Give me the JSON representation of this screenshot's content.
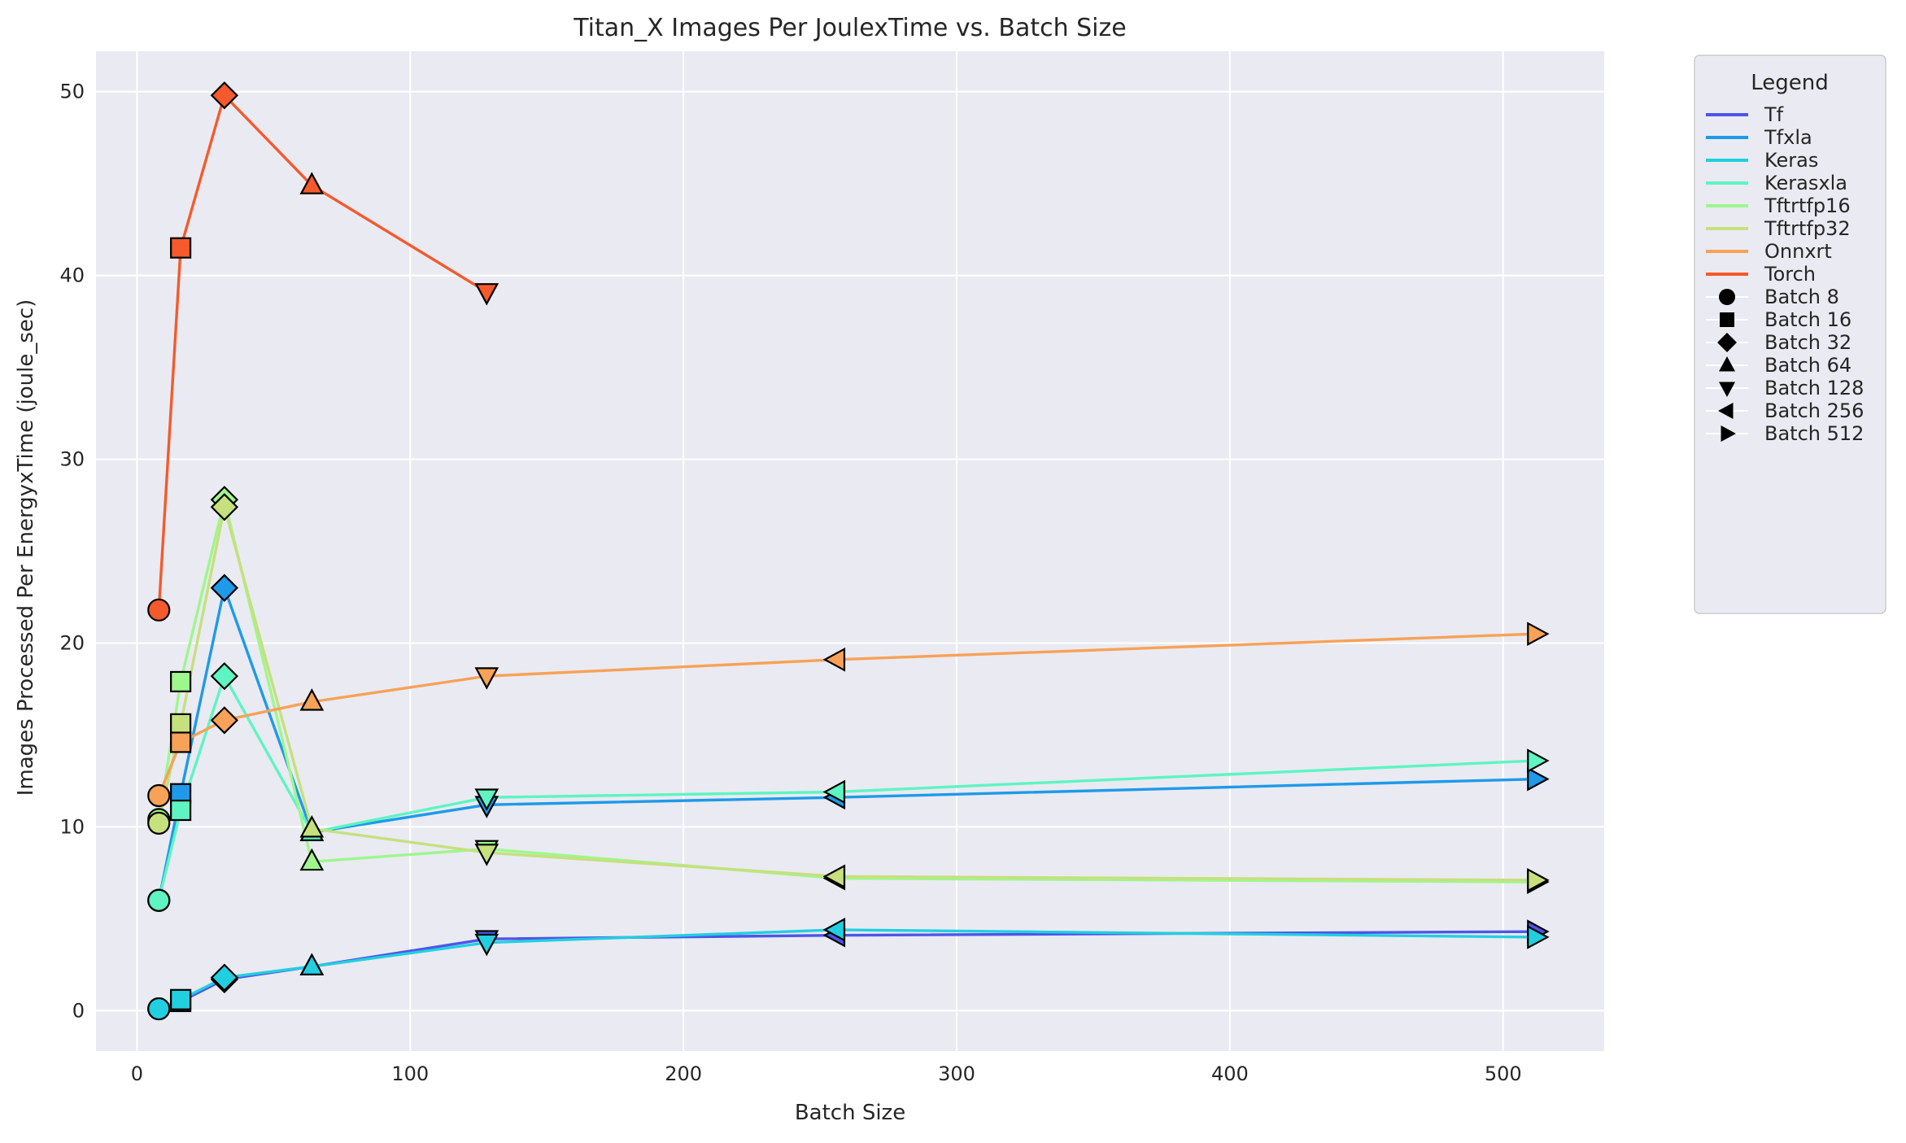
{
  "chart_data": {
    "type": "line",
    "title": "Titan_X Images Per JoulexTime vs. Batch Size",
    "xlabel": "Batch Size",
    "ylabel": "Images Processed Per EnergyxTime (joule_sec)",
    "xlim": [
      -15,
      537
    ],
    "ylim": [
      -2.2,
      52.2
    ],
    "xticks": [
      0,
      100,
      200,
      300,
      400,
      500
    ],
    "yticks": [
      0,
      10,
      20,
      30,
      40,
      50
    ],
    "grid": true,
    "legend_position": "outside-right",
    "legend_title": "Legend",
    "x": [
      8,
      16,
      32,
      64,
      128,
      256,
      512
    ],
    "series": [
      {
        "name": "Tf",
        "color": "#4d55e8",
        "values": [
          0.1,
          0.5,
          1.7,
          2.4,
          3.9,
          4.1,
          4.3
        ]
      },
      {
        "name": "Tfxla",
        "color": "#1e9ae8",
        "values": [
          6.0,
          11.8,
          23.0,
          9.7,
          11.2,
          11.6,
          12.6
        ]
      },
      {
        "name": "Keras",
        "color": "#22cfe0",
        "values": [
          0.1,
          0.6,
          1.8,
          2.4,
          3.7,
          4.4,
          4.0
        ]
      },
      {
        "name": "Kerasxla",
        "color": "#5ef5c2",
        "values": [
          6.0,
          10.9,
          18.2,
          9.7,
          11.6,
          11.9,
          13.6
        ]
      },
      {
        "name": "Tftrtfp16",
        "color": "#9ef78d",
        "values": [
          10.4,
          17.9,
          27.8,
          8.1,
          8.8,
          7.2,
          7.0
        ]
      },
      {
        "name": "Tftrtfp32",
        "color": "#c6e07e",
        "values": [
          10.2,
          15.6,
          27.4,
          9.9,
          8.6,
          7.3,
          7.1
        ]
      },
      {
        "name": "Onnxrt",
        "color": "#f7a257",
        "values": [
          11.7,
          14.6,
          15.8,
          16.8,
          18.2,
          19.1,
          20.5
        ]
      },
      {
        "name": "Torch",
        "color": "#f45a2c",
        "values": [
          21.8,
          41.5,
          49.8,
          44.9,
          39.1,
          null,
          null
        ]
      }
    ],
    "batch_markers": [
      {
        "label": "Batch 8",
        "batch": 8,
        "marker": "circle"
      },
      {
        "label": "Batch 16",
        "batch": 16,
        "marker": "square"
      },
      {
        "label": "Batch 32",
        "batch": 32,
        "marker": "diamond"
      },
      {
        "label": "Batch 64",
        "batch": 64,
        "marker": "triangle-up"
      },
      {
        "label": "Batch 128",
        "batch": 128,
        "marker": "triangle-down"
      },
      {
        "label": "Batch 256",
        "batch": 256,
        "marker": "triangle-left"
      },
      {
        "label": "Batch 512",
        "batch": 512,
        "marker": "triangle-right"
      }
    ],
    "colors": {
      "plot_background": "#eaeaf2",
      "grid": "#ffffff",
      "marker_edge": "#000000"
    }
  }
}
